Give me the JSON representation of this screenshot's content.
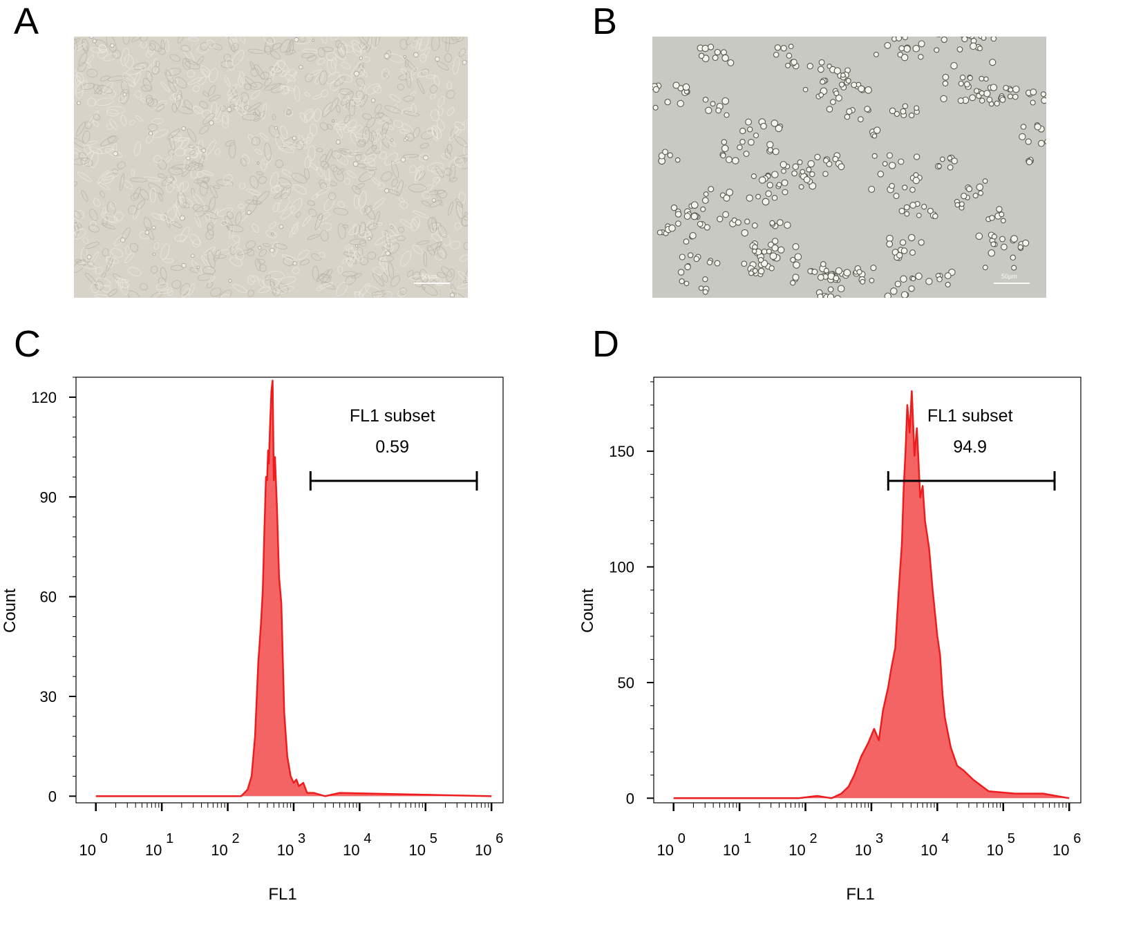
{
  "panels": [
    {
      "letter": "A",
      "kind": "micrograph",
      "scale_bar": "50µm",
      "description": "confluent adherent monolayer"
    },
    {
      "letter": "B",
      "kind": "micrograph",
      "scale_bar": "50µm",
      "description": "clustered rounded cells"
    },
    {
      "letter": "C",
      "kind": "histogram"
    },
    {
      "letter": "D",
      "kind": "histogram"
    }
  ],
  "colors": {
    "histogram_fill": "#f56464",
    "histogram_line": "#ee1c1c",
    "axis": "#000000",
    "micrograph_a_bg": "#d8d3c8",
    "micrograph_b_bg": "#c9c9c3"
  },
  "chart_data": [
    {
      "panel": "C",
      "type": "area",
      "xlabel": "FL1",
      "ylabel": "Count",
      "xscale": "log",
      "xlim": [
        0.5,
        1500000
      ],
      "ylim": [
        -2,
        126
      ],
      "yticks": [
        0,
        30,
        60,
        90,
        120
      ],
      "xtick_exponents": [
        0,
        1,
        2,
        3,
        4,
        5,
        6
      ],
      "gate": {
        "name": "FL1 subset",
        "value": "0.59",
        "range": [
          1800,
          600000
        ]
      },
      "series": [
        {
          "x": [
            1,
            160,
            200,
            230,
            260,
            290,
            320,
            340,
            360,
            380,
            395,
            410,
            420,
            440,
            460,
            480,
            500,
            520,
            560,
            600,
            650,
            720,
            800,
            900,
            1000,
            1100,
            1200,
            1400,
            1600,
            2000,
            3000,
            5000,
            1000000
          ],
          "y": [
            0,
            0,
            2,
            6,
            18,
            40,
            52,
            62,
            80,
            96,
            95,
            104,
            100,
            112,
            122,
            125,
            95,
            102,
            86,
            66,
            58,
            25,
            12,
            6,
            4,
            5,
            3,
            4,
            1,
            1,
            0,
            1,
            0
          ]
        }
      ]
    },
    {
      "panel": "D",
      "type": "area",
      "xlabel": "FL1",
      "ylabel": "Count",
      "xscale": "log",
      "xlim": [
        0.5,
        1500000
      ],
      "ylim": [
        -2,
        182
      ],
      "yticks": [
        0,
        50,
        100,
        150
      ],
      "xtick_exponents": [
        0,
        1,
        2,
        3,
        4,
        5,
        6
      ],
      "gate": {
        "name": "FL1 subset",
        "value": "94.9",
        "range": [
          1800,
          600000
        ]
      },
      "series": [
        {
          "x": [
            1,
            80,
            150,
            250,
            350,
            450,
            550,
            700,
            900,
            1100,
            1300,
            1500,
            1800,
            2000,
            2300,
            2600,
            2900,
            3100,
            3300,
            3500,
            3800,
            4100,
            4500,
            4900,
            5500,
            6000,
            6500,
            7500,
            8500,
            10000,
            11000,
            12000,
            13000,
            14500,
            16000,
            20000,
            25000,
            35000,
            60000,
            150000,
            400000,
            1000000
          ],
          "y": [
            0,
            0,
            1,
            0,
            2,
            5,
            10,
            18,
            24,
            30,
            25,
            38,
            48,
            56,
            65,
            90,
            110,
            135,
            150,
            170,
            158,
            176,
            148,
            160,
            130,
            135,
            120,
            108,
            90,
            70,
            62,
            45,
            35,
            28,
            22,
            14,
            12,
            8,
            3,
            2,
            2,
            0
          ]
        }
      ]
    }
  ]
}
